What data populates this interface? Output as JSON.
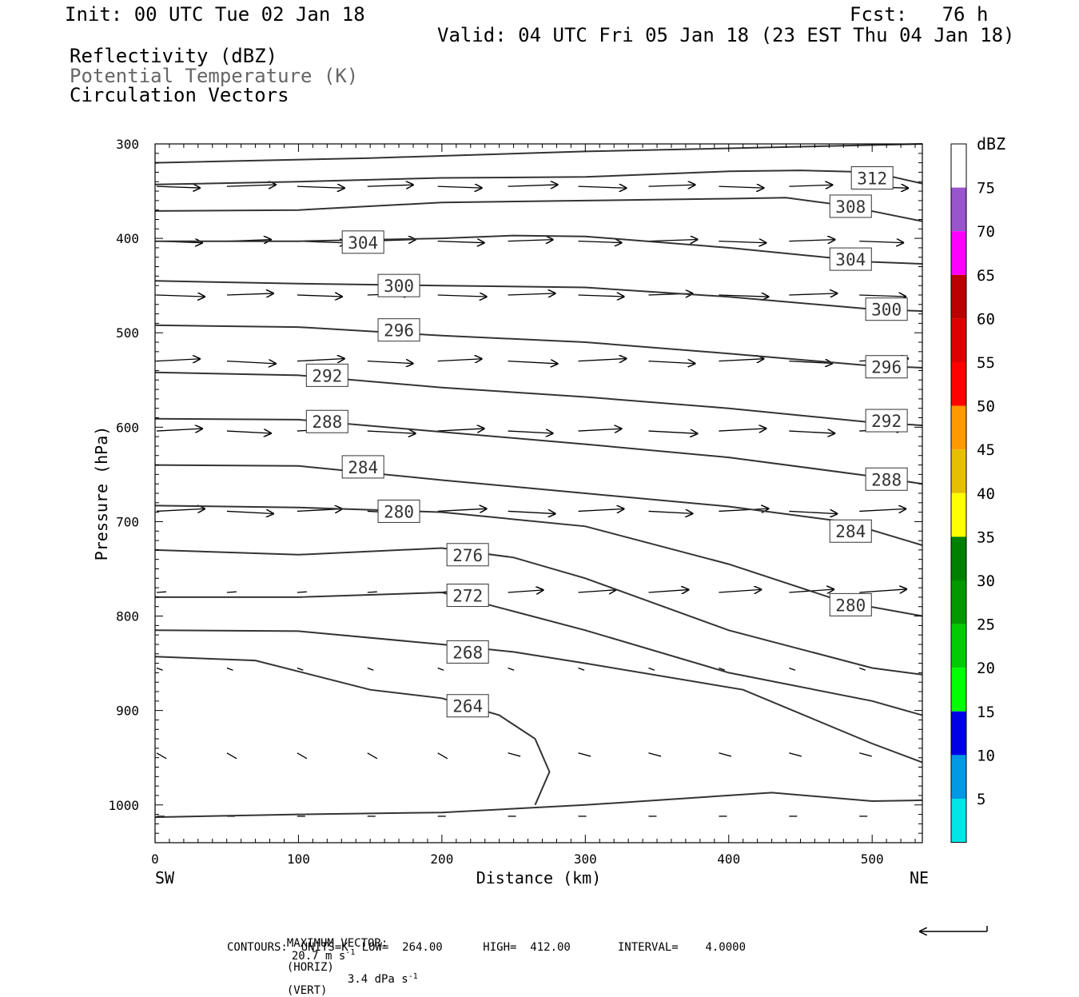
{
  "header": {
    "init": "Init: 00 UTC Tue 02 Jan 18",
    "fcst": "Fcst:   76 h",
    "valid": "Valid: 04 UTC Fri 05 Jan 18 (23 EST Thu 04 Jan 18)",
    "field1": "Reflectivity (dBZ)",
    "field2": "Potential Temperature (K)",
    "field3": "Circulation Vectors"
  },
  "footer": {
    "max_vector_label": "MAXIMUM VECTOR:",
    "max_horiz_value": "20.7 m s",
    "max_horiz_exp": "-1",
    "max_horiz_unit": "(HORIZ)",
    "max_vert_value": "3.4 dPa s",
    "max_vert_exp": "-1",
    "max_vert_unit": "(VERT)",
    "contours_line": "CONTOURS:  UNITS=K  LOW=  264.00      HIGH=  412.00       INTERVAL=    4.0000"
  },
  "colors": {
    "contour": "#333333",
    "frame": "#000000",
    "colorbar": [
      "#ffffff",
      "#00e5e5",
      "#0099e6",
      "#0000e6",
      "#00ff00",
      "#00cc00",
      "#009900",
      "#008000",
      "#ffff00",
      "#e6bf00",
      "#ff9900",
      "#ff0000",
      "#dd0000",
      "#bb0000",
      "#ff00ff",
      "#9955cc",
      "#ffffff"
    ]
  },
  "chart_data": {
    "type": "line",
    "title": "Potential Temperature (K)",
    "xlabel": "Distance (km)",
    "ylabel": "Pressure (hPa)",
    "xlim": [
      0,
      535
    ],
    "ylim": [
      300,
      1040
    ],
    "y_inverted": true,
    "x_ticks": [
      0,
      100,
      200,
      300,
      400,
      500
    ],
    "y_ticks": [
      300,
      400,
      500,
      600,
      700,
      800,
      900,
      1000
    ],
    "x_end_labels": {
      "left": "SW",
      "right": "NE"
    },
    "colorbar": {
      "unit": "dBZ",
      "labels": [
        "5",
        "10",
        "15",
        "20",
        "25",
        "30",
        "35",
        "40",
        "45",
        "50",
        "55",
        "60",
        "65",
        "70",
        "75"
      ]
    },
    "series": [
      {
        "label": "",
        "points": [
          [
            0,
            320
          ],
          [
            150,
            315
          ],
          [
            300,
            308
          ],
          [
            450,
            303
          ],
          [
            535,
            300
          ]
        ]
      },
      {
        "label": "312",
        "points": [
          [
            0,
            343
          ],
          [
            100,
            340
          ],
          [
            200,
            336
          ],
          [
            300,
            335
          ],
          [
            400,
            329
          ],
          [
            450,
            328
          ],
          [
            500,
            330
          ],
          [
            535,
            342
          ]
        ]
      },
      {
        "label": "308",
        "points": [
          [
            0,
            371
          ],
          [
            100,
            370
          ],
          [
            200,
            362
          ],
          [
            300,
            360
          ],
          [
            400,
            358
          ],
          [
            440,
            357
          ],
          [
            480,
            365
          ],
          [
            535,
            382
          ]
        ]
      },
      {
        "label": "304",
        "points": [
          [
            0,
            403
          ],
          [
            100,
            403
          ],
          [
            200,
            400
          ],
          [
            250,
            397
          ],
          [
            300,
            398
          ],
          [
            400,
            410
          ],
          [
            500,
            425
          ],
          [
            535,
            427
          ]
        ]
      },
      {
        "label": "300",
        "points": [
          [
            0,
            445
          ],
          [
            100,
            448
          ],
          [
            200,
            450
          ],
          [
            300,
            452
          ],
          [
            400,
            462
          ],
          [
            500,
            475
          ],
          [
            535,
            477
          ]
        ]
      },
      {
        "label": "296",
        "points": [
          [
            0,
            492
          ],
          [
            100,
            494
          ],
          [
            200,
            503
          ],
          [
            300,
            510
          ],
          [
            400,
            522
          ],
          [
            500,
            535
          ],
          [
            535,
            537
          ]
        ]
      },
      {
        "label": "292",
        "points": [
          [
            0,
            542
          ],
          [
            100,
            545
          ],
          [
            200,
            558
          ],
          [
            300,
            568
          ],
          [
            400,
            580
          ],
          [
            500,
            595
          ],
          [
            535,
            598
          ]
        ]
      },
      {
        "label": "288",
        "points": [
          [
            0,
            591
          ],
          [
            100,
            592
          ],
          [
            200,
            605
          ],
          [
            300,
            618
          ],
          [
            400,
            632
          ],
          [
            500,
            652
          ],
          [
            535,
            660
          ]
        ]
      },
      {
        "label": "284",
        "points": [
          [
            0,
            640
          ],
          [
            100,
            641
          ],
          [
            200,
            656
          ],
          [
            300,
            670
          ],
          [
            400,
            684
          ],
          [
            480,
            700
          ],
          [
            535,
            725
          ]
        ]
      },
      {
        "label": "280",
        "points": [
          [
            0,
            683
          ],
          [
            100,
            685
          ],
          [
            200,
            690
          ],
          [
            300,
            705
          ],
          [
            400,
            745
          ],
          [
            480,
            785
          ],
          [
            535,
            800
          ]
        ]
      },
      {
        "label": "276",
        "points": [
          [
            0,
            730
          ],
          [
            100,
            735
          ],
          [
            200,
            728
          ],
          [
            250,
            738
          ],
          [
            300,
            760
          ],
          [
            400,
            815
          ],
          [
            500,
            855
          ],
          [
            535,
            862
          ]
        ]
      },
      {
        "label": "272",
        "points": [
          [
            0,
            780
          ],
          [
            100,
            780
          ],
          [
            200,
            775
          ],
          [
            250,
            795
          ],
          [
            300,
            815
          ],
          [
            400,
            860
          ],
          [
            500,
            890
          ],
          [
            535,
            905
          ]
        ]
      },
      {
        "label": "268",
        "points": [
          [
            0,
            815
          ],
          [
            100,
            816
          ],
          [
            200,
            830
          ],
          [
            250,
            838
          ],
          [
            300,
            850
          ],
          [
            410,
            878
          ],
          [
            500,
            935
          ],
          [
            535,
            955
          ]
        ]
      },
      {
        "label": "264",
        "points": [
          [
            0,
            843
          ],
          [
            70,
            847
          ],
          [
            150,
            878
          ],
          [
            200,
            887
          ],
          [
            240,
            905
          ],
          [
            265,
            930
          ],
          [
            275,
            965
          ],
          [
            265,
            1000
          ]
        ]
      },
      {
        "label": "",
        "points": [
          [
            0,
            1013
          ],
          [
            100,
            1010
          ],
          [
            200,
            1008
          ],
          [
            300,
            1000
          ],
          [
            400,
            990
          ],
          [
            430,
            987
          ],
          [
            500,
            996
          ],
          [
            535,
            995
          ]
        ]
      }
    ]
  }
}
